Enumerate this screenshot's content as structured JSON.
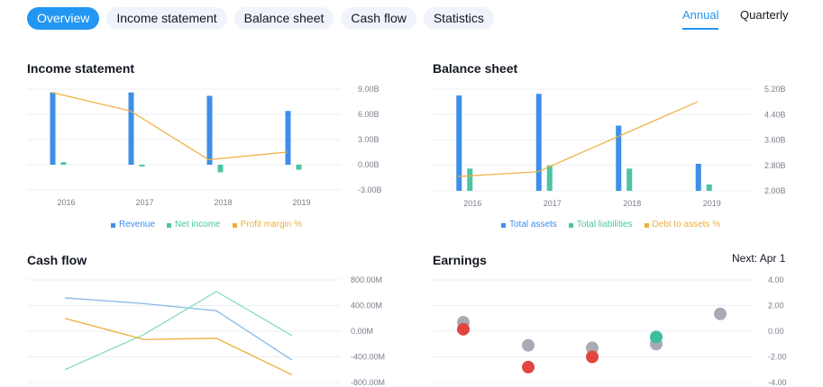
{
  "tabs": [
    {
      "label": "Overview",
      "active": true
    },
    {
      "label": "Income statement",
      "active": false
    },
    {
      "label": "Balance sheet",
      "active": false
    },
    {
      "label": "Cash flow",
      "active": false
    },
    {
      "label": "Statistics",
      "active": false
    }
  ],
  "period": {
    "annual": "Annual",
    "quarterly": "Quarterly",
    "selected": "Annual"
  },
  "panels": {
    "income": {
      "title": "Income statement"
    },
    "balance": {
      "title": "Balance sheet"
    },
    "cashflow": {
      "title": "Cash flow"
    },
    "earnings": {
      "title": "Earnings",
      "next_label": "Next:",
      "next_value": "Apr 1"
    }
  },
  "colors": {
    "blue": "#3d8fe8",
    "teal": "#4cc4a4",
    "orange": "#f0ad3c",
    "light_blue": "#8ab8e8",
    "light_teal": "#82dcc4",
    "grey": "#a8abb5",
    "red": "#e0463f",
    "green": "#3cbf9e",
    "grid": "#eceff3",
    "axis_text": "#7a7f8a"
  },
  "chart_data": [
    {
      "id": "income",
      "type": "bar",
      "categories": [
        "2016",
        "2017",
        "2018",
        "2019"
      ],
      "series": [
        {
          "name": "Revenue",
          "kind": "bar",
          "color": "#3d8fe8",
          "values": [
            8.6,
            8.6,
            8.2,
            6.4
          ]
        },
        {
          "name": "Net income",
          "kind": "bar",
          "color": "#4cc4a4",
          "values": [
            0.3,
            -0.2,
            -0.9,
            -0.6
          ]
        },
        {
          "name": "Profit margin %",
          "kind": "line",
          "color": "#f0ad3c",
          "values": [
            8.6,
            6.4,
            0.6,
            1.5
          ]
        }
      ],
      "y_ticks": [
        "9.00B",
        "6.00B",
        "3.00B",
        "0.00B",
        "-3.00B"
      ],
      "ylim": [
        -3,
        9
      ]
    },
    {
      "id": "balance",
      "type": "bar",
      "categories": [
        "2016",
        "2017",
        "2018",
        "2019"
      ],
      "series": [
        {
          "name": "Total assets",
          "kind": "bar",
          "color": "#3d8fe8",
          "values": [
            5.0,
            5.05,
            4.05,
            2.85
          ]
        },
        {
          "name": "Total liabilities",
          "kind": "bar",
          "color": "#4cc4a4",
          "values": [
            2.7,
            2.8,
            2.7,
            2.2
          ]
        },
        {
          "name": "Debt to assets %",
          "kind": "line",
          "color": "#f0ad3c",
          "values": [
            2.45,
            2.6,
            3.7,
            4.8
          ]
        }
      ],
      "y_ticks": [
        "5.20B",
        "4.40B",
        "3.60B",
        "2.80B",
        "2.00B"
      ],
      "ylim": [
        2.0,
        5.2
      ]
    },
    {
      "id": "cashflow",
      "type": "line",
      "x": [
        0,
        1,
        2,
        3
      ],
      "series": [
        {
          "color": "#8ab8e8",
          "values": [
            520,
            430,
            320,
            -450
          ]
        },
        {
          "color": "#82dcc4",
          "values": [
            -600,
            -50,
            620,
            -70
          ]
        },
        {
          "color": "#f0ad3c",
          "values": [
            200,
            -130,
            -110,
            -680
          ]
        }
      ],
      "y_ticks": [
        "800.00M",
        "400.00M",
        "0.00M",
        "-400.00M",
        "-800.00M"
      ],
      "ylim": [
        -800,
        800
      ]
    },
    {
      "id": "earnings",
      "type": "scatter",
      "series": [
        {
          "color": "#a8abb5",
          "points": [
            [
              0,
              0.7
            ],
            [
              1,
              -1.1
            ],
            [
              2,
              -1.3
            ],
            [
              3,
              -1.0
            ],
            [
              4,
              1.35
            ]
          ]
        },
        {
          "color": "#e0463f",
          "points": [
            [
              0,
              0.15
            ],
            [
              1,
              -2.8
            ],
            [
              2,
              -2.0
            ]
          ]
        },
        {
          "color": "#3cbf9e",
          "points": [
            [
              3,
              -0.45
            ]
          ]
        }
      ],
      "y_ticks": [
        "4.00",
        "2.00",
        "0.00",
        "-2.00",
        "-4.00"
      ],
      "ylim": [
        -4,
        4
      ]
    }
  ]
}
